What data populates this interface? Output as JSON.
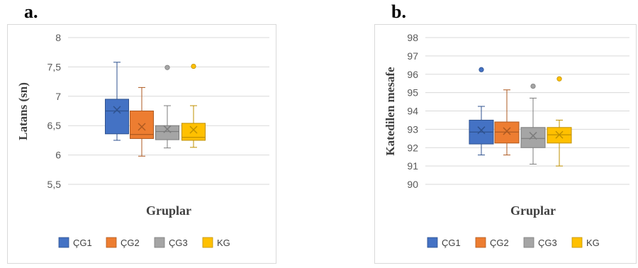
{
  "panels": [
    {
      "letter": "a."
    },
    {
      "letter": "b."
    }
  ],
  "legend_colors": {
    "ÇG1": "#4472c4",
    "ÇG2": "#ed7d31",
    "ÇG3": "#a5a5a5",
    "KG": "#ffc000"
  },
  "chart_data": [
    {
      "type": "box",
      "title": "",
      "ylabel": "Latans (sn)",
      "xlabel": "Gruplar",
      "ylim": [
        5.5,
        8
      ],
      "yticks": [
        "5,5",
        "6",
        "6,5",
        "7",
        "7,5",
        "8"
      ],
      "grid": true,
      "legend_position": "bottom",
      "series": [
        {
          "name": "ÇG1",
          "min": 6.25,
          "q1": 6.36,
          "median": 6.75,
          "q3": 6.95,
          "max": 7.58,
          "mean": 6.77,
          "outliers": []
        },
        {
          "name": "ÇG2",
          "min": 5.98,
          "q1": 6.28,
          "median": 6.35,
          "q3": 6.75,
          "max": 7.15,
          "mean": 6.48,
          "outliers": []
        },
        {
          "name": "ÇG3",
          "min": 6.12,
          "q1": 6.26,
          "median": 6.4,
          "q3": 6.5,
          "max": 6.84,
          "mean": 6.44,
          "outliers": [
            7.49
          ]
        },
        {
          "name": "KG",
          "min": 6.13,
          "q1": 6.25,
          "median": 6.3,
          "q3": 6.54,
          "max": 6.84,
          "mean": 6.43,
          "outliers": [
            7.51
          ]
        }
      ]
    },
    {
      "type": "box",
      "title": "",
      "ylabel": "Katedilen mesafe",
      "xlabel": "Gruplar",
      "ylim": [
        90,
        98
      ],
      "yticks": [
        "90",
        "91",
        "92",
        "93",
        "94",
        "95",
        "96",
        "97",
        "98"
      ],
      "grid": true,
      "legend_position": "bottom",
      "series": [
        {
          "name": "ÇG1",
          "min": 91.6,
          "q1": 92.2,
          "median": 92.85,
          "q3": 93.5,
          "max": 94.25,
          "mean": 92.95,
          "outliers": [
            96.25
          ]
        },
        {
          "name": "ÇG2",
          "min": 91.6,
          "q1": 92.25,
          "median": 92.85,
          "q3": 93.4,
          "max": 95.15,
          "mean": 92.9,
          "outliers": []
        },
        {
          "name": "ÇG3",
          "min": 91.1,
          "q1": 92.0,
          "median": 92.5,
          "q3": 93.1,
          "max": 94.7,
          "mean": 92.65,
          "outliers": [
            95.35
          ]
        },
        {
          "name": "KG",
          "min": 91.0,
          "q1": 92.25,
          "median": 92.7,
          "q3": 93.1,
          "max": 93.5,
          "mean": 92.7,
          "outliers": [
            95.75
          ]
        }
      ]
    }
  ]
}
